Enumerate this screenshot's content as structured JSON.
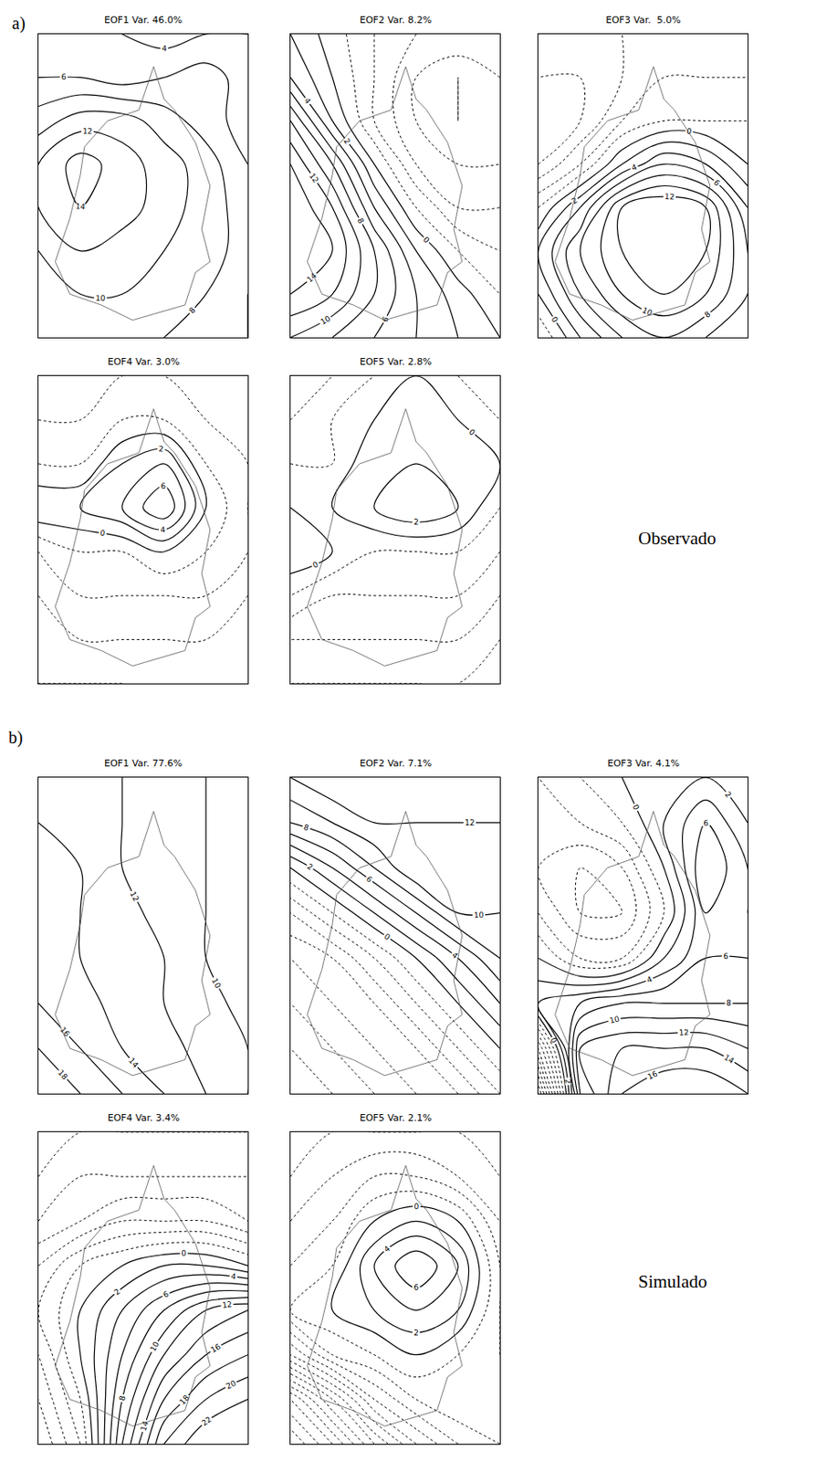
{
  "groups": [
    {
      "label": "a)",
      "caption": "Observado"
    },
    {
      "label": "b)",
      "caption": "Simulado"
    }
  ],
  "outline": {
    "x": [
      5.5,
      4.8,
      3.3,
      2.2,
      2.0,
      1.5,
      0.8,
      1.5,
      3.0,
      4.5,
      7.0,
      7.5,
      8.2,
      7.8,
      8.2,
      7.5,
      6.5,
      6.0,
      5.5
    ],
    "y": [
      12.5,
      10.5,
      10.0,
      8.8,
      7.5,
      5.5,
      3.5,
      2.0,
      1.5,
      0.8,
      1.5,
      3.0,
      3.5,
      5.0,
      7.0,
      9.0,
      10.5,
      11.0,
      12.5
    ]
  },
  "chart_data": [
    {
      "type": "contour",
      "group": "a)",
      "title": "EOF1 Var. 46.0%",
      "xlim": [
        0,
        10
      ],
      "ylim": [
        0,
        14
      ],
      "tick_labels": false,
      "contour_step": 2,
      "x": [
        0,
        2,
        4,
        6,
        8,
        10
      ],
      "y": [
        0,
        2,
        4,
        6,
        8,
        10,
        12,
        14
      ],
      "z": [
        [
          8,
          9,
          9,
          8,
          7,
          6
        ],
        [
          9,
          10,
          10,
          9,
          8,
          6
        ],
        [
          10,
          12,
          11,
          10,
          9,
          7
        ],
        [
          12,
          14,
          13,
          11,
          9,
          7
        ],
        [
          12,
          15,
          13,
          11,
          9,
          6
        ],
        [
          9,
          11,
          11,
          9,
          7,
          5
        ],
        [
          6,
          6,
          5,
          6,
          7,
          5
        ],
        [
          4,
          5,
          4,
          3,
          4,
          4
        ]
      ]
    },
    {
      "type": "contour",
      "group": "a)",
      "title": "EOF2 Var. 8.2%",
      "xlim": [
        0,
        10
      ],
      "ylim": [
        0,
        14
      ],
      "tick_labels": false,
      "contour_step": 2,
      "x": [
        0,
        2,
        4,
        6,
        8,
        10
      ],
      "y": [
        0,
        2,
        4,
        6,
        8,
        10,
        12,
        14
      ],
      "z": [
        [
          10,
          8,
          6,
          4,
          2,
          0
        ],
        [
          14,
          12,
          8,
          4,
          1,
          -2
        ],
        [
          16,
          14,
          8,
          2,
          -2,
          -4
        ],
        [
          16,
          12,
          4,
          -2,
          -6,
          -6
        ],
        [
          14,
          8,
          0,
          -6,
          -8,
          -8
        ],
        [
          10,
          2,
          -4,
          -8,
          -10,
          -8
        ],
        [
          4,
          0,
          -4,
          -8,
          -10,
          -8
        ],
        [
          2,
          -1,
          -4,
          -6,
          -6,
          -6
        ]
      ]
    },
    {
      "type": "contour",
      "group": "a)",
      "title": "EOF3 Var.  5.0%",
      "xlim": [
        0,
        10
      ],
      "ylim": [
        0,
        14
      ],
      "tick_labels": false,
      "contour_step": 2,
      "x": [
        0,
        2,
        4,
        6,
        8,
        10
      ],
      "y": [
        0,
        2,
        4,
        6,
        8,
        10,
        12,
        14
      ],
      "z": [
        [
          -4,
          2,
          6,
          8,
          6,
          4
        ],
        [
          0,
          6,
          10,
          12,
          10,
          6
        ],
        [
          2,
          8,
          12,
          14,
          12,
          6
        ],
        [
          -2,
          4,
          12,
          14,
          12,
          4
        ],
        [
          -8,
          -4,
          2,
          6,
          4,
          0
        ],
        [
          -10,
          -8,
          -4,
          -2,
          -2,
          -2
        ],
        [
          -8,
          -8,
          -6,
          -4,
          -4,
          -4
        ],
        [
          -6,
          -6,
          -6,
          -4,
          -4,
          -4
        ]
      ]
    },
    {
      "type": "contour",
      "group": "a)",
      "title": "EOF4 Var. 3.0%",
      "xlim": [
        0,
        10
      ],
      "ylim": [
        0,
        14
      ],
      "tick_labels": false,
      "contour_step": 2,
      "x": [
        0,
        2,
        4,
        6,
        8,
        10
      ],
      "y": [
        0,
        2,
        4,
        6,
        8,
        10,
        12,
        14
      ],
      "z": [
        [
          -8,
          -8,
          -8,
          -6,
          -6,
          -6
        ],
        [
          -6,
          -6,
          -6,
          -6,
          -6,
          -6
        ],
        [
          -6,
          -4,
          -4,
          -4,
          -4,
          -6
        ],
        [
          -4,
          -2,
          -2,
          0,
          -2,
          -4
        ],
        [
          2,
          2,
          4,
          8,
          0,
          -4
        ],
        [
          -2,
          -2,
          2,
          4,
          -2,
          -4
        ],
        [
          -4,
          -4,
          -2,
          -2,
          -4,
          -4
        ],
        [
          -6,
          -4,
          -4,
          -4,
          -4,
          -6
        ]
      ]
    },
    {
      "type": "contour",
      "group": "a)",
      "title": "EOF5 Var. 2.8%",
      "xlim": [
        0,
        10
      ],
      "ylim": [
        0,
        14
      ],
      "tick_labels": false,
      "contour_step": 2,
      "x": [
        0,
        2,
        4,
        6,
        8,
        10
      ],
      "y": [
        0,
        2,
        4,
        6,
        8,
        10,
        12,
        14
      ],
      "z": [
        [
          -8,
          -8,
          -8,
          -8,
          -8,
          -8
        ],
        [
          -6,
          -6,
          -6,
          -6,
          -6,
          -8
        ],
        [
          -2,
          -4,
          -4,
          -4,
          -4,
          -6
        ],
        [
          2,
          0,
          -2,
          -2,
          -2,
          -4
        ],
        [
          0,
          0,
          2,
          4,
          2,
          -2
        ],
        [
          -2,
          -2,
          2,
          2,
          2,
          0
        ],
        [
          -4,
          -2,
          0,
          2,
          0,
          -2
        ],
        [
          -4,
          -4,
          -2,
          0,
          -2,
          -4
        ]
      ]
    },
    {
      "type": "contour",
      "group": "b)",
      "title": "EOF1 Var. 77.6%",
      "xlim": [
        0,
        10
      ],
      "ylim": [
        0,
        14
      ],
      "tick_labels": false,
      "contour_step": 2,
      "x": [
        0,
        2,
        4,
        6,
        8,
        10
      ],
      "y": [
        0,
        2,
        4,
        6,
        8,
        10,
        12,
        14
      ],
      "z": [
        [
          20,
          18,
          16,
          14,
          12,
          10
        ],
        [
          18,
          16,
          14,
          13,
          11,
          10
        ],
        [
          16,
          15,
          13,
          12,
          11,
          9
        ],
        [
          16,
          14,
          13,
          12,
          10,
          9
        ],
        [
          15,
          14,
          13,
          11,
          10,
          9
        ],
        [
          15,
          14,
          12,
          11,
          10,
          9
        ],
        [
          14,
          13,
          12,
          11,
          10,
          9
        ],
        [
          14,
          13,
          12,
          11,
          10,
          9
        ]
      ]
    },
    {
      "type": "contour",
      "group": "b)",
      "title": "EOF2 Var. 7.1%",
      "xlim": [
        0,
        10
      ],
      "ylim": [
        0,
        14
      ],
      "tick_labels": false,
      "contour_step": 2,
      "x": [
        0,
        2,
        4,
        6,
        8,
        10
      ],
      "y": [
        0,
        2,
        4,
        6,
        8,
        10,
        12,
        14
      ],
      "z": [
        [
          -16,
          -14,
          -12,
          -10,
          -8,
          -4
        ],
        [
          -14,
          -12,
          -10,
          -8,
          -4,
          0
        ],
        [
          -12,
          -10,
          -8,
          -4,
          0,
          4
        ],
        [
          -10,
          -8,
          -4,
          0,
          4,
          8
        ],
        [
          -6,
          -2,
          2,
          6,
          10,
          10
        ],
        [
          0,
          4,
          8,
          12,
          12,
          12
        ],
        [
          8,
          10,
          12,
          12,
          12,
          12
        ],
        [
          12,
          14,
          14,
          14,
          14,
          14
        ]
      ]
    },
    {
      "type": "contour",
      "group": "b)",
      "title": "EOF3 Var. 4.1%",
      "xlim": [
        0,
        10
      ],
      "ylim": [
        0,
        14
      ],
      "tick_labels": false,
      "contour_step": 2,
      "x": [
        0,
        2,
        4,
        6,
        8,
        10
      ],
      "y": [
        0,
        2,
        4,
        6,
        8,
        10,
        12,
        14
      ],
      "z": [
        [
          -20,
          10,
          16,
          18,
          18,
          16
        ],
        [
          -10,
          12,
          14,
          14,
          14,
          12
        ],
        [
          4,
          6,
          8,
          8,
          8,
          8
        ],
        [
          0,
          -4,
          -4,
          2,
          6,
          6
        ],
        [
          -4,
          -8,
          -8,
          -2,
          6,
          4
        ],
        [
          -6,
          -8,
          -6,
          0,
          8,
          4
        ],
        [
          -4,
          -4,
          -2,
          2,
          6,
          2
        ],
        [
          -4,
          -2,
          0,
          2,
          2,
          0
        ]
      ]
    },
    {
      "type": "contour",
      "group": "b)",
      "title": "EOF4 Var. 3.4%",
      "xlim": [
        0,
        10
      ],
      "ylim": [
        0,
        14
      ],
      "tick_labels": false,
      "contour_step": 2,
      "x": [
        0,
        2,
        4,
        6,
        8,
        10
      ],
      "y": [
        0,
        2,
        4,
        6,
        8,
        10,
        12,
        14
      ],
      "z": [
        [
          -10,
          -4,
          10,
          20,
          24,
          24
        ],
        [
          -8,
          -2,
          8,
          16,
          20,
          22
        ],
        [
          -6,
          0,
          6,
          12,
          16,
          18
        ],
        [
          -4,
          0,
          4,
          8,
          12,
          14
        ],
        [
          -6,
          -2,
          0,
          2,
          2,
          0
        ],
        [
          -10,
          -8,
          -6,
          -6,
          -6,
          -8
        ],
        [
          -12,
          -10,
          -10,
          -10,
          -10,
          -10
        ],
        [
          -12,
          -12,
          -12,
          -12,
          -12,
          -12
        ]
      ]
    },
    {
      "type": "contour",
      "group": "b)",
      "title": "EOF5 Var. 2.1%",
      "xlim": [
        0,
        10
      ],
      "ylim": [
        0,
        14
      ],
      "tick_labels": false,
      "contour_step": 2,
      "x": [
        0,
        2,
        4,
        6,
        8,
        10
      ],
      "y": [
        0,
        2,
        4,
        6,
        8,
        10,
        12,
        14
      ],
      "z": [
        [
          -30,
          -24,
          -16,
          -10,
          -6,
          -4
        ],
        [
          -24,
          -16,
          -8,
          -4,
          -2,
          -2
        ],
        [
          -10,
          -4,
          -2,
          0,
          -2,
          -4
        ],
        [
          -2,
          0,
          2,
          4,
          2,
          -4
        ],
        [
          -4,
          -2,
          4,
          8,
          4,
          -4
        ],
        [
          -6,
          -4,
          0,
          2,
          0,
          -6
        ],
        [
          -8,
          -6,
          -4,
          -4,
          -6,
          -8
        ],
        [
          -10,
          -8,
          -8,
          -8,
          -8,
          -10
        ]
      ]
    }
  ]
}
